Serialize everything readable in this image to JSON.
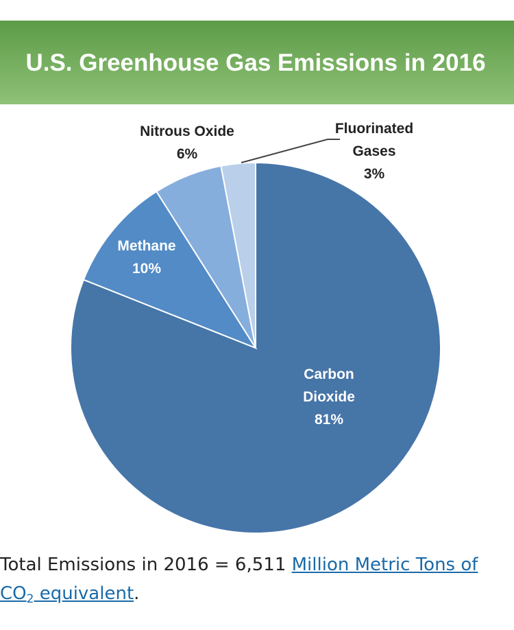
{
  "chart_data": {
    "type": "pie",
    "title": "U.S. Greenhouse Gas Emissions in 2016",
    "slices": [
      {
        "label_lines": [
          "Carbon",
          "Dioxide"
        ],
        "value": 81,
        "value_label": "81%",
        "color": "#4675a8",
        "label_color": "#ffffff"
      },
      {
        "label_lines": [
          "Methane"
        ],
        "value": 10,
        "value_label": "10%",
        "color": "#528bc6",
        "label_color": "#ffffff"
      },
      {
        "label_lines": [
          "Nitrous Oxide"
        ],
        "value": 6,
        "value_label": "6%",
        "color": "#86aedd",
        "label_color": "#222222"
      },
      {
        "label_lines": [
          "Fluorinated",
          "Gases"
        ],
        "value": 3,
        "value_label": "3%",
        "color": "#b9cfea",
        "label_color": "#222222"
      }
    ],
    "header_colors": {
      "top": "#5c9b47",
      "bottom": "#8fc177"
    }
  },
  "footer": {
    "text_before": "Total Emissions in 2016 = 6,511 ",
    "link_part1": "Million Metric Tons of",
    "link_part2_prefix": "CO",
    "link_part2_sub": "2",
    "link_part2_suffix": " equivalent",
    "text_after": "."
  }
}
